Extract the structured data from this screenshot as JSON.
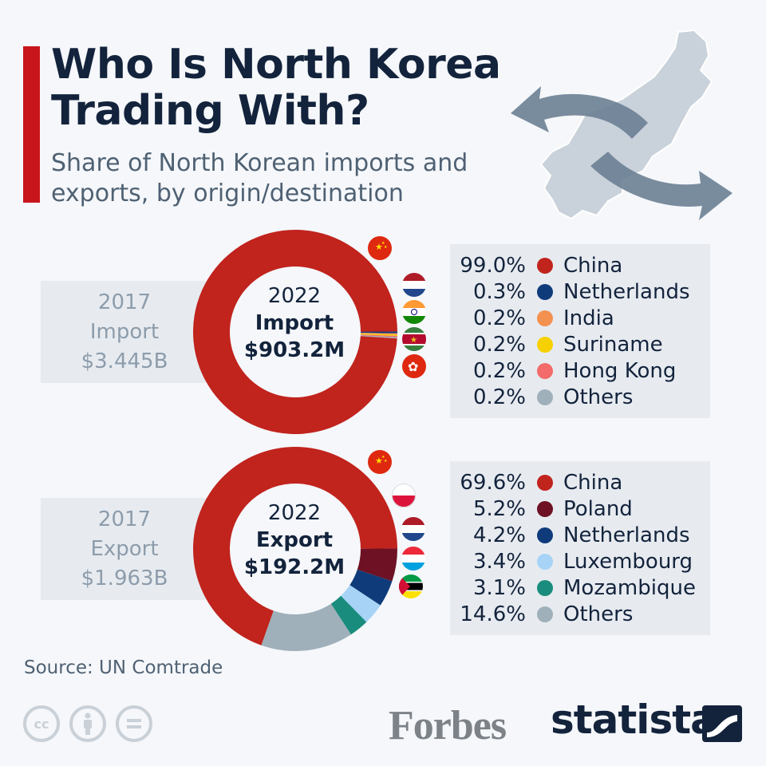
{
  "header": {
    "title_line1": "Who Is North Korea",
    "title_line2": "Trading With?",
    "subtitle": "Share of North Korean imports and exports, by origin/destination"
  },
  "colors": {
    "accent": "#c8151b",
    "navy": "#13233c",
    "panel": "#e7ebf0"
  },
  "import_panel": {
    "prev_year": "2017",
    "prev_label": "Import",
    "prev_value": "$3.445B",
    "year": "2022",
    "label": "Import",
    "value": "$903.2M",
    "flags": [
      "china-flag",
      "netherlands-flag",
      "india-flag",
      "suriname-flag",
      "hong-kong-flag"
    ]
  },
  "export_panel": {
    "prev_year": "2017",
    "prev_label": "Export",
    "prev_value": "$1.963B",
    "year": "2022",
    "label": "Export",
    "value": "$192.2M",
    "flags": [
      "china-flag",
      "poland-flag",
      "netherlands-flag",
      "luxembourg-flag",
      "mozambique-flag"
    ]
  },
  "chart_data": [
    {
      "type": "pie",
      "variant": "donut",
      "series": [
        {
          "name": "China",
          "value": 99.0,
          "label": "99.0%",
          "color": "#c1231d"
        },
        {
          "name": "Netherlands",
          "value": 0.3,
          "label": "0.3%",
          "color": "#0f3b7a"
        },
        {
          "name": "India",
          "value": 0.2,
          "label": "0.2%",
          "color": "#f39150"
        },
        {
          "name": "Suriname",
          "value": 0.2,
          "label": "0.2%",
          "color": "#f7d000"
        },
        {
          "name": "Hong Kong",
          "value": 0.2,
          "label": "0.2%",
          "color": "#f36b6b"
        },
        {
          "name": "Others",
          "value": 0.2,
          "label": "0.2%",
          "color": "#9fb0ba"
        }
      ]
    },
    {
      "type": "pie",
      "variant": "donut",
      "series": [
        {
          "name": "China",
          "value": 69.6,
          "label": "69.6%",
          "color": "#c1231d"
        },
        {
          "name": "Poland",
          "value": 5.2,
          "label": "5.2%",
          "color": "#6e1124"
        },
        {
          "name": "Netherlands",
          "value": 4.2,
          "label": "4.2%",
          "color": "#0f3b7a"
        },
        {
          "name": "Luxembourg",
          "value": 3.4,
          "label": "3.4%",
          "color": "#a7d3f7"
        },
        {
          "name": "Mozambique",
          "value": 3.1,
          "label": "3.1%",
          "color": "#1a8c7e"
        },
        {
          "name": "Others",
          "value": 14.6,
          "label": "14.6%",
          "color": "#9fb0ba"
        }
      ]
    }
  ],
  "footer": {
    "source": "Source: UN Comtrade",
    "forbes": "Forbes",
    "statista": "statista",
    "license_icons": [
      "creative-commons-icon",
      "attribution-icon",
      "no-derivatives-icon"
    ]
  }
}
